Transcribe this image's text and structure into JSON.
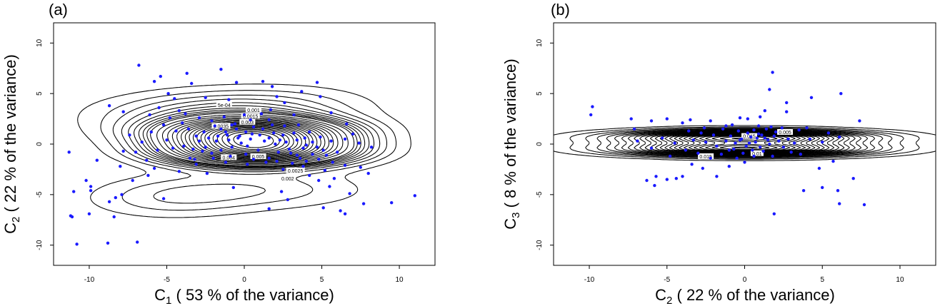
{
  "chart_data": [
    {
      "type": "scatter",
      "panel_label": "(a)",
      "xlabel_main": "C",
      "xlabel_sub": "1",
      "xlabel_rest": "  ( 53 % of the variance)",
      "ylabel_main": "C",
      "ylabel_sub": "2",
      "ylabel_rest": "  ( 22 % of the variance)",
      "xlim": [
        -12.3,
        12.3
      ],
      "ylim": [
        -12,
        12
      ],
      "x_ticks": [
        -10,
        -5,
        0,
        5,
        10
      ],
      "y_ticks": [
        -10,
        -5,
        0,
        5,
        10
      ],
      "grid": false,
      "point_color": "#1a1aff",
      "contour_color": "#000000",
      "contour_labels": [
        {
          "text": "5e-04",
          "x": -1.3,
          "y": 3.9
        },
        {
          "text": "0.001",
          "x": 0.6,
          "y": 3.4
        },
        {
          "text": "0.0015",
          "x": 0.4,
          "y": 2.8
        },
        {
          "text": "0.003",
          "x": 0.2,
          "y": 2.2
        },
        {
          "text": "0.0035",
          "x": -1.5,
          "y": 1.8
        },
        {
          "text": "0.004",
          "x": -1.0,
          "y": -1.3
        },
        {
          "text": "0.005",
          "x": 0.9,
          "y": -1.2
        },
        {
          "text": "0.0025",
          "x": 3.3,
          "y": -2.6
        },
        {
          "text": "0.002",
          "x": 2.8,
          "y": -3.4
        }
      ],
      "density": {
        "components": [
          {
            "w": 1.0,
            "mx": 0.5,
            "my": 1.1,
            "sx": 3.6,
            "sy": 0.95
          },
          {
            "w": 1.0,
            "mx": 0.8,
            "my": -0.6,
            "sx": 3.6,
            "sy": 0.95
          },
          {
            "w": 0.35,
            "mx": -1.5,
            "my": 2.8,
            "sx": 4.8,
            "sy": 1.5
          },
          {
            "w": 0.14,
            "mx": 0.5,
            "my": -4.5,
            "sx": 4.8,
            "sy": 1.3
          },
          {
            "w": 0.08,
            "mx": -5.0,
            "my": -5.5,
            "sx": 3.5,
            "sy": 1.3
          },
          {
            "w": 0.05,
            "mx": 3.0,
            "my": 4.2,
            "sx": 4.0,
            "sy": 1.3
          }
        ],
        "levels": [
          0.0005,
          0.001,
          0.0015,
          0.002,
          0.0025,
          0.003,
          0.0035,
          0.004,
          0.0045,
          0.005,
          0.006,
          0.007,
          0.008,
          0.009,
          0.01,
          0.011,
          0.012,
          0.013,
          0.014,
          0.015,
          0.016,
          0.017,
          0.018,
          0.019,
          0.02,
          0.021,
          0.022,
          0.023
        ]
      },
      "points": [
        [
          -6.8,
          7.8
        ],
        [
          -7.8,
          3.2
        ],
        [
          -8.7,
          3.8
        ],
        [
          -5.8,
          6.2
        ],
        [
          -5.4,
          6.7
        ],
        [
          -3.7,
          7.0
        ],
        [
          -3.4,
          6.0
        ],
        [
          -1.5,
          7.4
        ],
        [
          -0.5,
          6.1
        ],
        [
          1.2,
          6.2
        ],
        [
          1.8,
          5.7
        ],
        [
          4.7,
          6.1
        ],
        [
          3.7,
          5.2
        ],
        [
          4.9,
          4.7
        ],
        [
          -4.9,
          5.0
        ],
        [
          -4.5,
          4.5
        ],
        [
          -2.5,
          4.6
        ],
        [
          -1.0,
          4.4
        ],
        [
          2.6,
          4.1
        ],
        [
          2.1,
          4.7
        ],
        [
          -5.5,
          3.6
        ],
        [
          -6.1,
          2.9
        ],
        [
          -3.8,
          3.0
        ],
        [
          1.1,
          3.0
        ],
        [
          3.2,
          2.9
        ],
        [
          5.6,
          3.1
        ],
        [
          6.6,
          2.0
        ],
        [
          -7.4,
          0.9
        ],
        [
          -7.0,
          -0.8
        ],
        [
          -7.8,
          -0.7
        ],
        [
          -11.3,
          -0.8
        ],
        [
          -9.5,
          -1.6
        ],
        [
          -8.0,
          -2.2
        ],
        [
          -6.3,
          -1.6
        ],
        [
          -6.2,
          -3.1
        ],
        [
          -7.2,
          -3.6
        ],
        [
          -10.2,
          -3.6
        ],
        [
          -11.0,
          -4.7
        ],
        [
          -9.9,
          -4.2
        ],
        [
          -9.9,
          -4.6
        ],
        [
          -7.9,
          -5.0
        ],
        [
          -8.3,
          -5.3
        ],
        [
          -8.7,
          -5.7
        ],
        [
          -10.0,
          -6.9
        ],
        [
          -11.2,
          -7.1
        ],
        [
          -11.1,
          -7.2
        ],
        [
          -8.4,
          -7.2
        ],
        [
          -10.8,
          -9.9
        ],
        [
          -8.8,
          -9.8
        ],
        [
          -6.9,
          -9.7
        ],
        [
          -5.2,
          -5.4
        ],
        [
          -4.2,
          -2.7
        ],
        [
          -5.8,
          -2.4
        ],
        [
          -3.1,
          -2.0
        ],
        [
          -2.4,
          -2.9
        ],
        [
          -0.7,
          -4.3
        ],
        [
          2.4,
          -4.7
        ],
        [
          1.6,
          -6.4
        ],
        [
          2.8,
          -5.5
        ],
        [
          5.1,
          -6.3
        ],
        [
          6.2,
          -6.6
        ],
        [
          6.5,
          -6.9
        ],
        [
          6.8,
          -4.9
        ],
        [
          5.5,
          -4.2
        ],
        [
          4.8,
          -3.6
        ],
        [
          4.2,
          -3.1
        ],
        [
          5.8,
          -3.4
        ],
        [
          7.5,
          -2.3
        ],
        [
          8.0,
          -2.9
        ],
        [
          7.7,
          -5.9
        ],
        [
          9.5,
          -5.8
        ],
        [
          11.0,
          -5.1
        ],
        [
          6.5,
          -2.1
        ],
        [
          5.2,
          -2.6
        ],
        [
          3.8,
          -2.2
        ],
        [
          2.5,
          -2.5
        ],
        [
          0.2,
          -2.0
        ],
        [
          -1.2,
          -1.8
        ],
        [
          -3.5,
          -1.4
        ],
        [
          -4.6,
          -0.4
        ],
        [
          -5.0,
          0.4
        ],
        [
          -4.4,
          1.3
        ],
        [
          -4.0,
          2.1
        ],
        [
          -2.9,
          2.6
        ],
        [
          -2.1,
          2.3
        ],
        [
          -1.5,
          1.5
        ],
        [
          -0.6,
          2.0
        ],
        [
          0.4,
          2.4
        ],
        [
          1.6,
          2.4
        ],
        [
          2.6,
          1.8
        ],
        [
          3.5,
          1.9
        ],
        [
          4.2,
          1.2
        ],
        [
          4.9,
          0.7
        ],
        [
          5.6,
          0.3
        ],
        [
          5.1,
          -0.6
        ],
        [
          4.4,
          -1.0
        ],
        [
          3.6,
          -1.4
        ],
        [
          2.9,
          -0.5
        ],
        [
          2.2,
          -0.8
        ],
        [
          1.6,
          -1.4
        ],
        [
          0.9,
          -0.6
        ],
        [
          0.2,
          -0.2
        ],
        [
          -0.4,
          0.6
        ],
        [
          -1.1,
          0.9
        ],
        [
          -1.8,
          0.3
        ],
        [
          -2.5,
          -0.3
        ],
        [
          -3.1,
          0.8
        ],
        [
          -3.6,
          1.5
        ],
        [
          -2.6,
          1.2
        ],
        [
          -1.9,
          1.8
        ],
        [
          -1.2,
          1.2
        ],
        [
          -0.5,
          1.5
        ],
        [
          0.1,
          1.2
        ],
        [
          0.6,
          1.7
        ],
        [
          1.2,
          1.5
        ],
        [
          1.9,
          1.1
        ],
        [
          2.5,
          0.9
        ],
        [
          3.2,
          1.1
        ],
        [
          3.9,
          0.6
        ],
        [
          4.4,
          0.2
        ],
        [
          3.8,
          -0.4
        ],
        [
          3.0,
          -0.9
        ],
        [
          2.3,
          0.4
        ],
        [
          1.6,
          0.6
        ],
        [
          1.0,
          0.9
        ],
        [
          0.4,
          0.5
        ],
        [
          -0.2,
          0.1
        ],
        [
          -0.8,
          -0.3
        ],
        [
          -1.5,
          -0.6
        ],
        [
          -2.1,
          -0.9
        ],
        [
          -2.7,
          -0.7
        ],
        [
          -3.3,
          -0.5
        ],
        [
          -3.9,
          -0.2
        ],
        [
          -2.9,
          0.3
        ],
        [
          -2.3,
          0.6
        ],
        [
          -1.7,
          0.8
        ],
        [
          -1.0,
          0.4
        ],
        [
          -0.3,
          0.8
        ],
        [
          0.5,
          1.0
        ],
        [
          1.3,
          0.3
        ],
        [
          2.0,
          0.0
        ],
        [
          2.7,
          0.2
        ],
        [
          3.4,
          0.4
        ],
        [
          4.0,
          -0.1
        ],
        [
          4.7,
          -0.3
        ],
        [
          5.3,
          -1.1
        ],
        [
          6.0,
          -0.8
        ],
        [
          6.5,
          0.5
        ],
        [
          7.0,
          1.0
        ],
        [
          7.4,
          0.1
        ],
        [
          8.2,
          -0.3
        ],
        [
          -5.6,
          -0.6
        ],
        [
          -6.6,
          0.2
        ],
        [
          -6.0,
          1.2
        ],
        [
          -5.2,
          1.9
        ],
        [
          -4.8,
          2.6
        ],
        [
          -3.2,
          -1.5
        ],
        [
          -2.0,
          -1.4
        ],
        [
          -0.9,
          -1.2
        ],
        [
          0.1,
          -1.0
        ],
        [
          1.4,
          -1.8
        ],
        [
          2.1,
          -1.7
        ],
        [
          3.1,
          -1.9
        ],
        [
          4.0,
          -1.7
        ],
        [
          4.8,
          -1.5
        ],
        [
          5.7,
          -1.8
        ],
        [
          -1.3,
          2.7
        ],
        [
          0.0,
          2.9
        ],
        [
          1.7,
          3.4
        ],
        [
          -4.2,
          3.3
        ],
        [
          3.4,
          -1.1
        ],
        [
          0.6,
          -1.5
        ],
        [
          -0.8,
          1.9
        ],
        [
          1.8,
          1.9
        ]
      ]
    },
    {
      "type": "scatter",
      "panel_label": "(b)",
      "xlabel_main": "C",
      "xlabel_sub": "2",
      "xlabel_rest": "  ( 22 % of the variance)",
      "ylabel_main": "C",
      "ylabel_sub": "3",
      "ylabel_rest": "  ( 8 % of the variance)",
      "xlim": [
        -12.3,
        12.3
      ],
      "ylim": [
        -12,
        12
      ],
      "x_ticks": [
        -10,
        -5,
        0,
        5,
        10
      ],
      "y_ticks": [
        -10,
        -5,
        0,
        5,
        10
      ],
      "grid": false,
      "point_color": "#1a1aff",
      "contour_color": "#000000",
      "contour_labels": [
        {
          "text": "0.005",
          "x": 2.6,
          "y": 1.2
        },
        {
          "text": "0.015",
          "x": 0.3,
          "y": 0.8
        },
        {
          "text": "0.015",
          "x": -2.5,
          "y": -1.2
        },
        {
          "text": "0.01",
          "x": 0.8,
          "y": -0.9
        }
      ],
      "density": {
        "components": [
          {
            "w": 1.0,
            "mx": 0.0,
            "my": 0.65,
            "sx": 4.8,
            "sy": 0.45
          },
          {
            "w": 1.0,
            "mx": 0.0,
            "my": -0.45,
            "sx": 4.8,
            "sy": 0.45
          }
        ],
        "levels": [
          0.0012,
          0.0025,
          0.004,
          0.0055,
          0.007,
          0.0085,
          0.01,
          0.0115,
          0.013,
          0.0145,
          0.016,
          0.0175,
          0.019,
          0.0205,
          0.022,
          0.0235,
          0.025,
          0.0265,
          0.028,
          0.0295,
          0.031,
          0.0325,
          0.034,
          0.0355,
          0.037,
          0.0385,
          0.04,
          0.0415,
          0.043,
          0.0445,
          0.046,
          0.0475
        ]
      },
      "points": [
        [
          -9.8,
          3.7
        ],
        [
          -9.9,
          2.9
        ],
        [
          -7.3,
          2.5
        ],
        [
          -7.1,
          1.5
        ],
        [
          -6.0,
          2.3
        ],
        [
          -5.0,
          2.5
        ],
        [
          -4.0,
          2.1
        ],
        [
          -3.5,
          2.4
        ],
        [
          -2.6,
          1.6
        ],
        [
          -2.2,
          2.3
        ],
        [
          -1.2,
          1.8
        ],
        [
          -0.3,
          2.6
        ],
        [
          0.2,
          2.5
        ],
        [
          1.0,
          2.7
        ],
        [
          1.3,
          3.3
        ],
        [
          1.8,
          7.1
        ],
        [
          1.6,
          5.4
        ],
        [
          2.7,
          4.1
        ],
        [
          2.7,
          3.2
        ],
        [
          3.5,
          1.4
        ],
        [
          4.3,
          4.6
        ],
        [
          6.2,
          5.0
        ],
        [
          7.4,
          2.3
        ],
        [
          5.4,
          1.1
        ],
        [
          4.0,
          1.6
        ],
        [
          5.7,
          -1.7
        ],
        [
          3.6,
          -1.0
        ],
        [
          4.8,
          -2.4
        ],
        [
          3.8,
          -4.6
        ],
        [
          5.0,
          -4.3
        ],
        [
          6.0,
          -4.6
        ],
        [
          6.1,
          -5.9
        ],
        [
          7.7,
          -6.0
        ],
        [
          7.0,
          -3.4
        ],
        [
          1.9,
          -6.9
        ],
        [
          -5.7,
          -3.2
        ],
        [
          -6.3,
          -3.6
        ],
        [
          -5.8,
          -4.1
        ],
        [
          -5.0,
          -3.5
        ],
        [
          -4.4,
          -3.4
        ],
        [
          -4.0,
          -3.2
        ],
        [
          -3.4,
          -2.0
        ],
        [
          -2.7,
          -2.4
        ],
        [
          -1.8,
          -3.2
        ],
        [
          -1.0,
          -2.2
        ],
        [
          -0.5,
          -1.4
        ],
        [
          0.0,
          -1.8
        ],
        [
          0.6,
          -1.2
        ],
        [
          1.2,
          -0.7
        ],
        [
          1.8,
          -1.2
        ],
        [
          -1.5,
          -1.0
        ],
        [
          -2.2,
          -1.4
        ],
        [
          -3.0,
          -0.9
        ],
        [
          -6.0,
          -0.4
        ],
        [
          -6.9,
          0.3
        ],
        [
          -5.3,
          0.6
        ],
        [
          -4.5,
          0.1
        ],
        [
          -3.3,
          0.4
        ],
        [
          -2.5,
          0.2
        ],
        [
          -1.8,
          -0.2
        ],
        [
          -1.2,
          0.3
        ],
        [
          -0.7,
          -0.5
        ],
        [
          -0.3,
          0.4
        ],
        [
          0.1,
          -0.2
        ],
        [
          0.4,
          0.7
        ],
        [
          0.7,
          0.2
        ],
        [
          1.0,
          -0.3
        ],
        [
          1.3,
          0.6
        ],
        [
          1.6,
          0.0
        ],
        [
          1.9,
          0.8
        ],
        [
          2.2,
          0.3
        ],
        [
          2.5,
          -0.3
        ],
        [
          2.8,
          0.5
        ],
        [
          3.2,
          0.1
        ],
        [
          0.2,
          1.1
        ],
        [
          0.6,
          1.4
        ],
        [
          0.9,
          1.0
        ],
        [
          1.4,
          1.5
        ],
        [
          -0.4,
          1.3
        ],
        [
          -0.9,
          0.8
        ],
        [
          -0.2,
          0.5
        ],
        [
          0.3,
          0.1
        ],
        [
          0.8,
          0.6
        ],
        [
          1.1,
          0.9
        ],
        [
          1.5,
          0.4
        ],
        [
          0.5,
          -0.6
        ],
        [
          -0.1,
          -0.9
        ],
        [
          -0.6,
          0.1
        ],
        [
          -1.0,
          -0.6
        ],
        [
          1.7,
          1.7
        ],
        [
          2.0,
          1.2
        ],
        [
          -2.0,
          0.9
        ],
        [
          -1.4,
          1.5
        ],
        [
          -3.8,
          -0.6
        ],
        [
          -4.8,
          -1.2
        ],
        [
          3.0,
          -0.8
        ],
        [
          4.2,
          0.5
        ],
        [
          5.0,
          0.2
        ],
        [
          6.1,
          0.7
        ],
        [
          -0.8,
          1.9
        ],
        [
          0.9,
          1.8
        ],
        [
          2.4,
          1.6
        ],
        [
          -2.8,
          1.1
        ],
        [
          -3.6,
          1.3
        ]
      ]
    }
  ]
}
